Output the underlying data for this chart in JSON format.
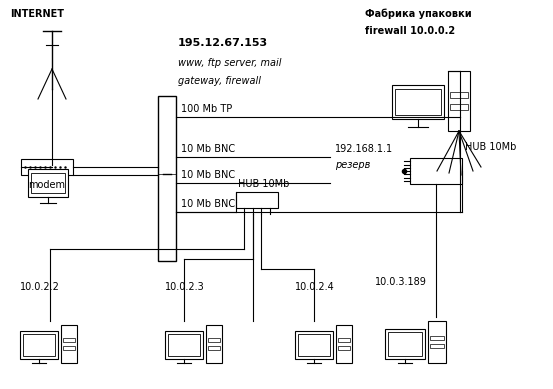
{
  "background_color": "#ffffff",
  "internet_label": "INTERNET",
  "ip_server": "195.12.67.153",
  "server_desc1": "www, ftp server, mail",
  "server_desc2": "gateway, firewall",
  "fabrika_label": "Фабрика упаковки",
  "firewall_label": "firewall 10.0.0.2",
  "line_100mb": "100 Mb TP",
  "line_10mb_1": "10 Mb BNC",
  "reserve_label": "192.168.1.1",
  "reserve_label2": "резерв",
  "line_10mb_2": "10 Mb BNC",
  "line_10mb_3": "10 Mb BNC",
  "hub_label": "HUB 10Mb",
  "hub_right_label": "HUB 10Mb",
  "modem_label": "modem",
  "ip_1022": "10.0.2.2",
  "ip_1023": "10.0.2.3",
  "ip_1024": "10.0.2.4",
  "ip_10_3_189": "10.0.3.189"
}
